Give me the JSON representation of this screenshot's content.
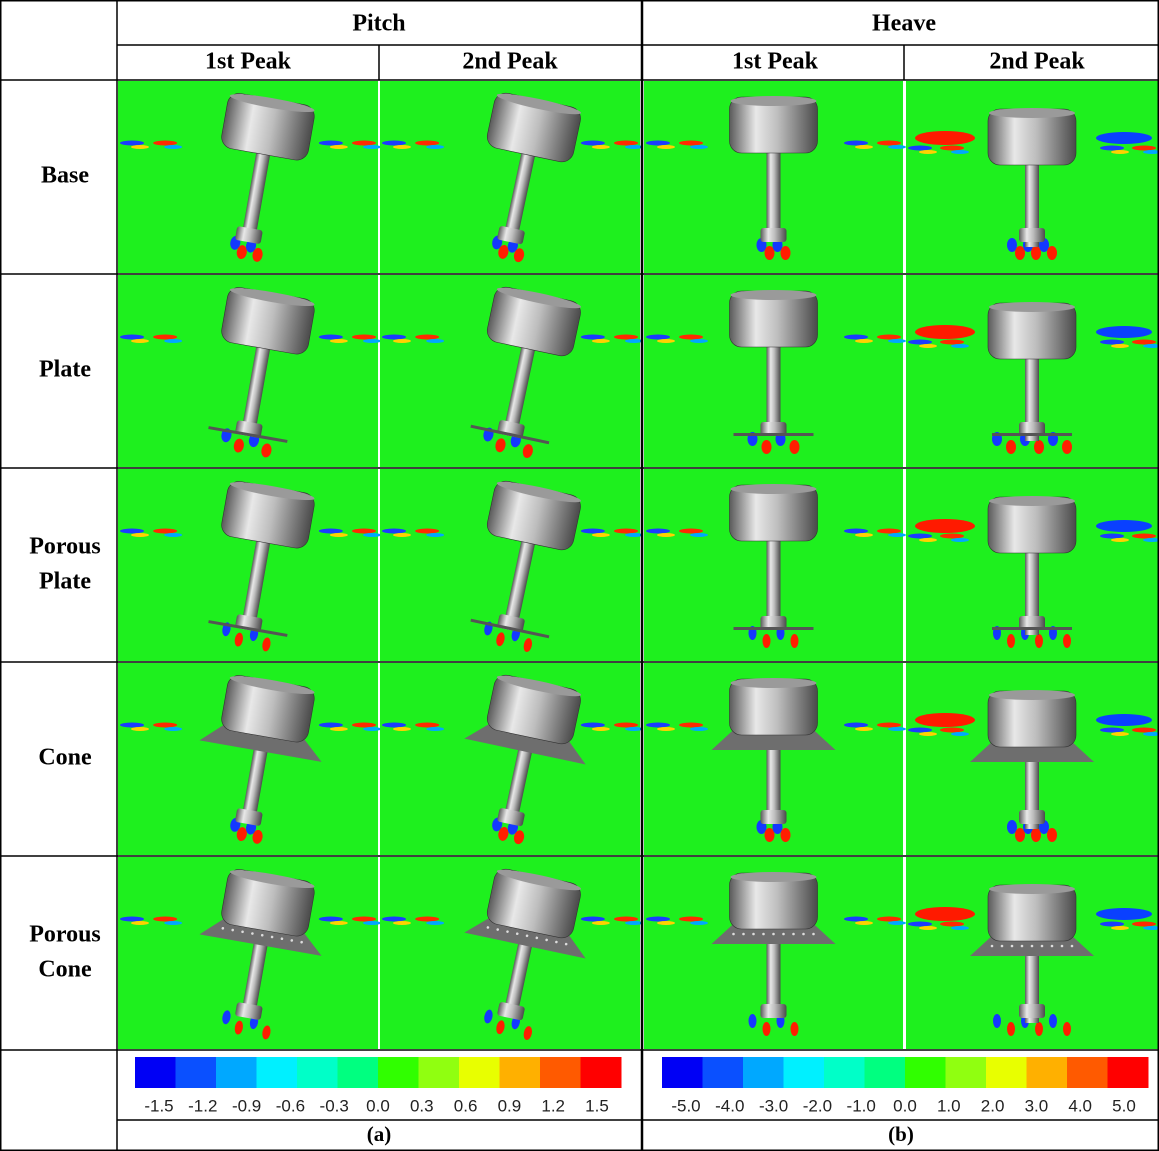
{
  "header": {
    "groups": [
      "Pitch",
      "Heave"
    ],
    "subheaders": [
      "1st Peak",
      "2nd Peak",
      "1st Peak",
      "2nd Peak"
    ]
  },
  "rows": [
    "Base",
    "Plate",
    "Porous Plate",
    "Cone",
    "Porous Cone"
  ],
  "colorbars": [
    {
      "ticks": [
        "-1.5",
        "-1.2",
        "-0.9",
        "-0.6",
        "-0.3",
        "0.0",
        "0.3",
        "0.6",
        "0.9",
        "1.2",
        "1.5"
      ],
      "caption": "(a)"
    },
    {
      "ticks": [
        "-5.0",
        "-4.0",
        "-3.0",
        "-2.0",
        "-1.0",
        "0.0",
        "1.0",
        "2.0",
        "3.0",
        "4.0",
        "5.0"
      ],
      "caption": "(b)"
    }
  ],
  "colors": [
    "#0000f5",
    "#0a50ff",
    "#00a8ff",
    "#00f0ff",
    "#00ffc8",
    "#00ff80",
    "#30ff00",
    "#90ff10",
    "#e8ff00",
    "#ffb000",
    "#ff5a00",
    "#ff0000"
  ]
}
